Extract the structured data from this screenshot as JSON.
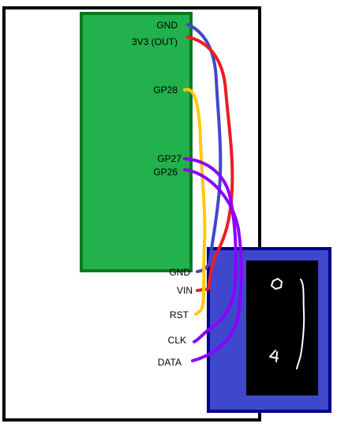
{
  "colors": {
    "board_fill": "#22b14c",
    "board_border": "#0a7a1e",
    "display_fill": "#3f48cc",
    "display_border": "#00008b",
    "screen": "#000000",
    "wire_gnd": "#3f48cc",
    "wire_power": "#ed1c24",
    "wire_rst": "#ffc90e",
    "wire_signal": "#8b00ff",
    "outline": "#000000"
  },
  "board": {
    "pins": {
      "gnd_top": "GND",
      "v33_out": "3V3 (OUT)",
      "gp28": "GP28",
      "gp27": "GP27",
      "gp26": "GP26"
    }
  },
  "display": {
    "pins": {
      "gnd": "GND",
      "vin": "VIN",
      "rst": "RST",
      "clk": "CLK",
      "data": "DATA"
    },
    "screen_readout": "0 4"
  },
  "wires": [
    {
      "from": "GND",
      "to": "GND",
      "color": "wire_gnd"
    },
    {
      "from": "3V3 (OUT)",
      "to": "VIN",
      "color": "wire_power"
    },
    {
      "from": "GP28",
      "to": "RST",
      "color": "wire_rst"
    },
    {
      "from": "GP27",
      "to": "CLK",
      "color": "wire_signal"
    },
    {
      "from": "GP26",
      "to": "DATA",
      "color": "wire_signal"
    }
  ]
}
